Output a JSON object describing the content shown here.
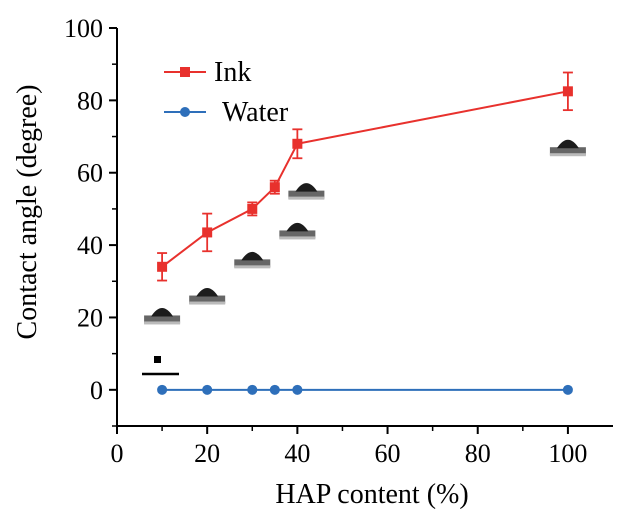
{
  "chart_data": {
    "type": "line",
    "xlabel": "HAP content (%)",
    "ylabel": "Contact angle (degree)",
    "xlim": [
      0,
      110
    ],
    "ylim": [
      -10,
      100
    ],
    "xticks": [
      0,
      20,
      40,
      60,
      80,
      100
    ],
    "yticks": [
      0,
      20,
      40,
      60,
      80,
      100
    ],
    "x_tick_labels": [
      "0",
      "20",
      "40",
      "60",
      "80",
      "100"
    ],
    "y_tick_labels": [
      "0",
      "20",
      "40",
      "60",
      "80",
      "100"
    ],
    "grid": false,
    "legend_position": "top-left",
    "series": [
      {
        "name": "Ink",
        "color": "#e8312d",
        "marker": "square",
        "x": [
          10,
          20,
          30,
          35,
          40,
          100
        ],
        "y": [
          34,
          43.5,
          50,
          56,
          68,
          82.5
        ],
        "error": [
          3.8,
          5.2,
          1.8,
          1.8,
          4,
          5.2
        ]
      },
      {
        "name": "Water",
        "color": "#2e6fba",
        "marker": "circle",
        "x": [
          10,
          20,
          30,
          35,
          40,
          100
        ],
        "y": [
          0,
          0,
          0,
          0,
          0,
          0
        ]
      }
    ],
    "droplet_insets": [
      {
        "x": 10,
        "y": 20
      },
      {
        "x": 20,
        "y": 25.5
      },
      {
        "x": 30,
        "y": 35.5
      },
      {
        "x": 40,
        "y": 43.5
      },
      {
        "x": 42,
        "y": 54.5
      },
      {
        "x": 100,
        "y": 66.5
      }
    ]
  }
}
